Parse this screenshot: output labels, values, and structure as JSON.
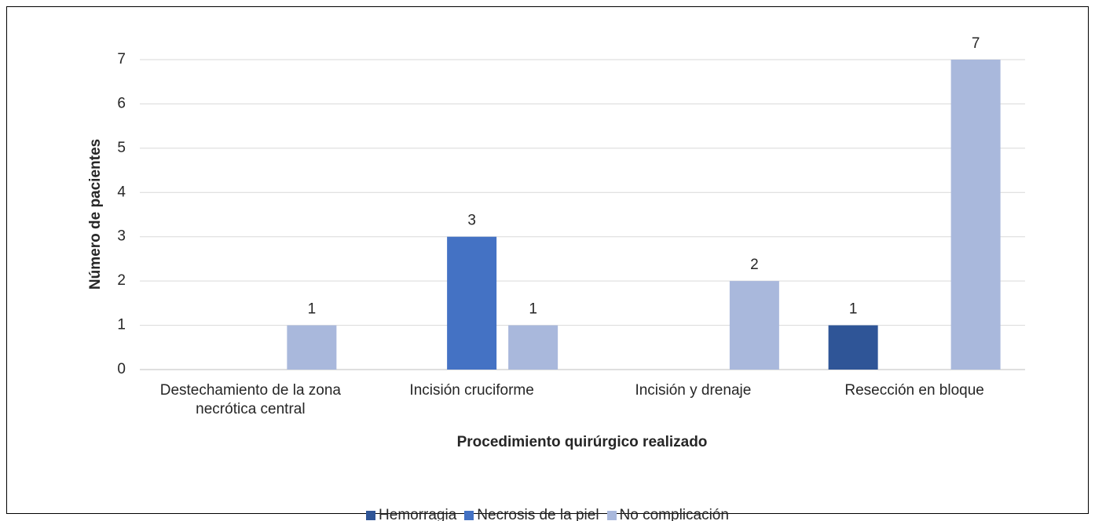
{
  "chart_data": {
    "type": "bar",
    "x_label": "Procedimiento quirúrgico realizado",
    "y_label": "Número de pacientes",
    "categories": [
      "Destechamiento de la zona necrótica central",
      "Incisión cruciforme",
      "Incisión y drenaje",
      "Resección en bloque"
    ],
    "series": [
      {
        "name": "Hemorragia",
        "color": "#2f5597",
        "values": [
          null,
          null,
          null,
          1
        ]
      },
      {
        "name": "Necrosis de la piel",
        "color": "#4472c4",
        "values": [
          null,
          3,
          null,
          null
        ]
      },
      {
        "name": "No complicación",
        "color": "#a9b8dc",
        "values": [
          1,
          1,
          2,
          7
        ]
      }
    ],
    "ylim": [
      0,
      7
    ],
    "yticks": [
      0,
      1,
      2,
      3,
      4,
      5,
      6,
      7
    ],
    "grid": true,
    "legend": "bottom"
  }
}
